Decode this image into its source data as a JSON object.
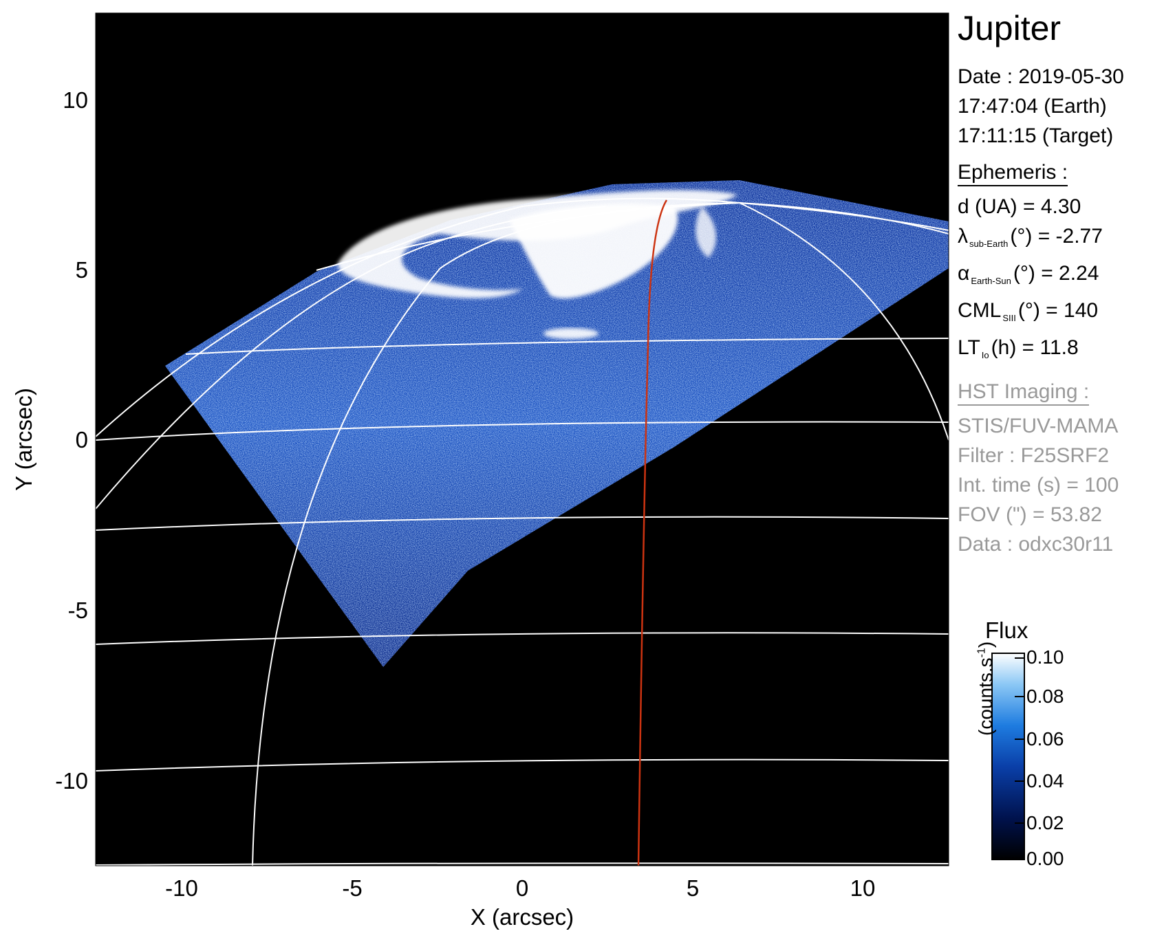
{
  "chart_data": {
    "type": "heatmap",
    "xlabel": "X (arcsec)",
    "ylabel": "Y (arcsec)",
    "xlim": [
      -12.5,
      12.5
    ],
    "ylim": [
      -12.5,
      12.5
    ],
    "xticks": [
      "-10",
      "-5",
      "0",
      "5",
      "10"
    ],
    "yticks": [
      "10",
      "5",
      "0",
      "-5",
      "-10"
    ],
    "colorbar": {
      "title": "Flux",
      "unit_base": "(counts.s",
      "unit_exp": "-1",
      "unit_close": ")",
      "ticks": [
        "0.10",
        "0.08",
        "0.06",
        "0.04",
        "0.02",
        "0.00"
      ],
      "range": [
        0.0,
        0.1
      ]
    },
    "grid_color": "#ffffff",
    "trace_color": "#cc3311"
  },
  "info": {
    "target": "Jupiter",
    "date_line": "Date : 2019-05-30",
    "time_earth": "17:47:04 (Earth)",
    "time_target": "17:11:15 (Target)",
    "ephemeris_header": "Ephemeris :",
    "distance": "d (UA)    = 4.30",
    "lat_symbol": "λ",
    "lat_sub": "sub-Earth",
    "lat_rest": "(°) = -2.77",
    "phase_symbol": "α",
    "phase_sub": "Earth-Sun",
    "phase_rest": "(°) = 2.24",
    "cml_main": "CML",
    "cml_sub": "SIII",
    "cml_rest": "(°) = 140",
    "lt_main": "LT",
    "lt_sub": "Io",
    "lt_rest": "(h) = 11.8",
    "hst_header": "HST Imaging :",
    "instrument": "STIS/FUV-MAMA",
    "filter": "Filter : F25SRF2",
    "int_time": "Int. time (s) = 100",
    "fov": "FOV (\") = 53.82",
    "dataset": "Data : odxc30r11"
  }
}
